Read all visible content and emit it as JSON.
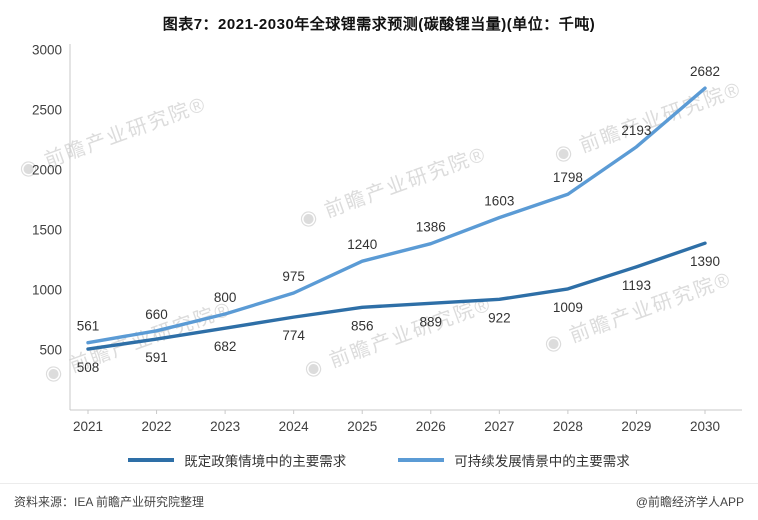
{
  "title": "图表7：2021-2030年全球锂需求预测(碳酸锂当量)(单位：千吨)",
  "chart_data": {
    "type": "line",
    "categories": [
      "2021",
      "2022",
      "2023",
      "2024",
      "2025",
      "2026",
      "2027",
      "2028",
      "2029",
      "2030"
    ],
    "series": [
      {
        "name": "既定政策情境中的主要需求",
        "color": "#2e6fa7",
        "values": [
          508,
          591,
          682,
          774,
          856,
          889,
          922,
          1009,
          1193,
          1390
        ],
        "label_position": "below"
      },
      {
        "name": "可持续发展情景中的主要需求",
        "color": "#5b9bd5",
        "values": [
          561,
          660,
          800,
          975,
          1240,
          1386,
          1603,
          1798,
          2193,
          2682
        ],
        "label_position": "above"
      }
    ],
    "xlabel": "",
    "ylabel": "",
    "ylim": [
      0,
      3000
    ],
    "yticks": [
      500,
      1000,
      1500,
      2000,
      2500,
      3000
    ],
    "grid": false,
    "legend_position": "bottom"
  },
  "watermark": {
    "prefix": "◉ ",
    "text": "前瞻产业研究院",
    "reg": "®"
  },
  "footer": {
    "source": "资料来源：IEA 前瞻产业研究院整理",
    "credit": "@前瞻经济学人APP"
  }
}
